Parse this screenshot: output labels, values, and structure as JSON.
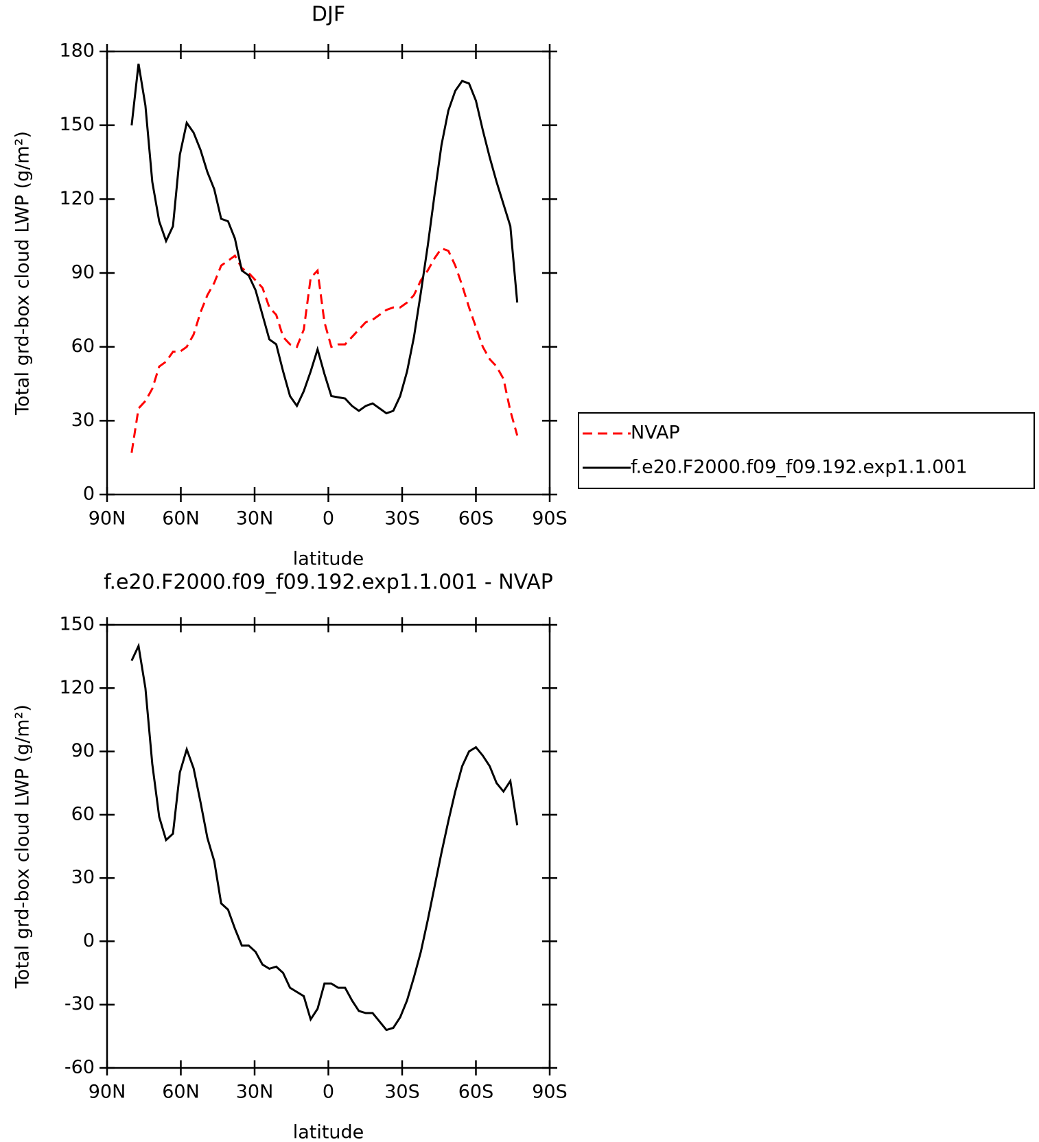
{
  "chart_data": [
    {
      "type": "line",
      "title": "DJF",
      "xlabel": "latitude",
      "ylabel": "Total grd-box cloud LWP (g/m²)",
      "x": [
        80,
        77.2,
        74.4,
        71.6,
        68.8,
        66,
        63.2,
        60.4,
        57.6,
        54.8,
        52,
        49.2,
        46.4,
        43.6,
        40.8,
        38,
        35.2,
        32.4,
        29.6,
        26.8,
        24,
        21.2,
        18.4,
        15.6,
        12.8,
        10,
        7.2,
        4.4,
        1.6,
        -1.2,
        -4,
        -6.8,
        -9.6,
        -12.4,
        -15.2,
        -18,
        -20.8,
        -23.6,
        -26.4,
        -29.2,
        -32,
        -34.8,
        -37.6,
        -40.4,
        -43.2,
        -46,
        -48.8,
        -51.6,
        -54.4,
        -57.2,
        -60,
        -62.8,
        -65.6,
        -68.4,
        -71.2,
        -74,
        -76.8
      ],
      "series": [
        {
          "name": "NVAP",
          "color": "#ff0000",
          "linestyle": "dashed",
          "values": [
            17,
            35,
            38,
            43,
            52,
            54,
            58,
            58,
            60,
            65,
            74,
            81,
            86,
            93,
            95,
            97,
            92,
            90,
            87,
            84,
            76,
            73,
            64,
            61,
            60,
            67,
            88,
            91,
            70,
            60,
            61,
            61,
            64,
            67,
            70,
            71,
            73,
            75,
            76,
            76,
            78,
            81,
            87,
            91,
            96,
            100,
            99,
            93,
            85,
            76,
            68,
            60,
            55,
            52,
            47,
            34,
            24
          ]
        },
        {
          "name": "f.e20.F2000.f09_f09.192.exp1.1.001",
          "color": "#000000",
          "linestyle": "solid",
          "values": [
            150,
            175,
            158,
            127,
            111,
            103,
            109,
            138,
            151,
            147,
            140,
            131,
            124,
            112,
            111,
            104,
            91,
            89,
            83,
            73,
            63,
            61,
            50,
            40,
            36,
            42,
            50,
            59,
            49,
            40,
            39.5,
            39,
            36,
            34,
            36,
            37,
            35,
            33,
            34,
            40,
            50,
            64,
            82,
            101,
            122,
            142,
            156,
            164,
            168,
            167,
            160,
            148,
            137,
            127,
            118,
            109,
            78
          ]
        }
      ],
      "xlim": [
        90,
        -90
      ],
      "xticks": [
        {
          "value": 90,
          "label": "90N"
        },
        {
          "value": 60,
          "label": "60N"
        },
        {
          "value": 30,
          "label": "30N"
        },
        0,
        {
          "value": -30,
          "label": "30S"
        },
        {
          "value": -60,
          "label": "60S"
        },
        {
          "value": -90,
          "label": "90S"
        }
      ],
      "ylim": [
        0,
        180
      ],
      "yticks": [
        0,
        30,
        60,
        90,
        120,
        150,
        180
      ],
      "legend": "outside right"
    },
    {
      "type": "line",
      "title": "f.e20.F2000.f09_f09.192.exp1.1.001 - NVAP",
      "xlabel": "latitude",
      "ylabel": "Total grd-box cloud LWP (g/m²)",
      "x": [
        80,
        77.2,
        74.4,
        71.6,
        68.8,
        66,
        63.2,
        60.4,
        57.6,
        54.8,
        52,
        49.2,
        46.4,
        43.6,
        40.8,
        38,
        35.2,
        32.4,
        29.6,
        26.8,
        24,
        21.2,
        18.4,
        15.6,
        12.8,
        10,
        7.2,
        4.4,
        1.6,
        -1.2,
        -4,
        -6.8,
        -9.6,
        -12.4,
        -15.2,
        -18,
        -20.8,
        -23.6,
        -26.4,
        -29.2,
        -32,
        -34.8,
        -37.6,
        -40.4,
        -43.2,
        -46,
        -48.8,
        -51.6,
        -54.4,
        -57.2,
        -60,
        -62.8,
        -65.6,
        -68.4,
        -71.2,
        -74,
        -76.8
      ],
      "series": [
        {
          "color": "#000000",
          "linestyle": "solid",
          "values": [
            133,
            140,
            120,
            84,
            59,
            48,
            51,
            80,
            91,
            82,
            66,
            49,
            38,
            18,
            15,
            6,
            -2,
            -2,
            -5,
            -11,
            -13,
            -12,
            -15,
            -22,
            -24,
            -26,
            -37,
            -32,
            -20,
            -20,
            -22,
            -22,
            -28,
            -33,
            -34,
            -34,
            -38,
            -42,
            -41,
            -36,
            -28,
            -17,
            -5,
            10,
            26,
            42,
            57,
            71,
            83,
            90,
            92,
            88,
            83,
            75,
            71,
            76,
            55
          ]
        }
      ],
      "xlim": [
        90,
        -90
      ],
      "xticks": [
        {
          "value": 90,
          "label": "90N"
        },
        {
          "value": 60,
          "label": "60N"
        },
        {
          "value": 30,
          "label": "30N"
        },
        0,
        {
          "value": -30,
          "label": "30S"
        },
        {
          "value": -60,
          "label": "60S"
        },
        {
          "value": -90,
          "label": "90S"
        }
      ],
      "ylim": [
        -60,
        150
      ],
      "yticks": [
        -60,
        -30,
        0,
        30,
        60,
        90,
        120,
        150
      ]
    }
  ]
}
